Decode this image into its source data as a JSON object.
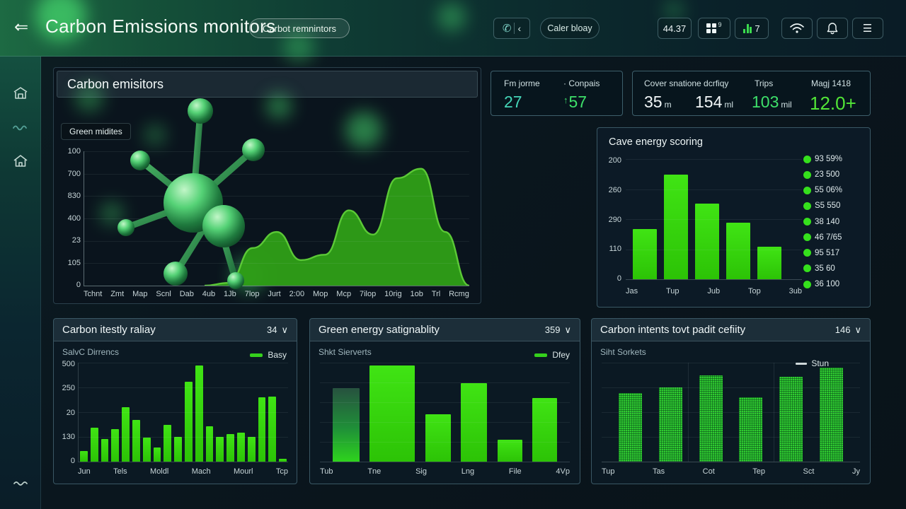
{
  "header": {
    "title": "Carbon Emissions monitors",
    "badge": "Carbot remnintors",
    "caller_button": "Caler bloay",
    "clock": "44.37",
    "apps_count": "9",
    "chart_count": "7"
  },
  "ui": {
    "back_arrow": "⇐",
    "chevron_left": "‹",
    "menu_glyph": "☰",
    "caret": "∨"
  },
  "stats": {
    "card1": {
      "col1_label": "Fm jorme",
      "col1_value": "27",
      "col2_label": "· Conpais",
      "col2_prefix": "↑",
      "col2_value": "57"
    },
    "card2": {
      "col1_label": "Cover snatione dcrfiqy",
      "col1_value_a": "35",
      "col1_suffix_a": "m",
      "col1_value_b": "154",
      "col1_suffix_b": "ml",
      "col2_label": "Trips",
      "col2_value": "103",
      "col2_suffix": "mil",
      "col3_label": "Magj 1418",
      "col3_value": "12.0+"
    }
  },
  "colors": {
    "accent_green": "#35d40c",
    "teal": "#45d6b8",
    "bright_green": "#52e637",
    "background": "#0a151d"
  },
  "chart_data": [
    {
      "id": "carbon-emissions-area",
      "type": "area",
      "title": "Carbon emisitors",
      "annotation": "Green midites",
      "x": [
        "Tchnt",
        "Zmt",
        "Map",
        "Scnl",
        "Dab",
        "4ub",
        "1Jb",
        "7lop",
        "Jurt",
        "2:00",
        "Mop",
        "Mcp",
        "7ilop",
        "10rig",
        "1ob",
        "Trl",
        "Rcmg"
      ],
      "y_ticks": [
        "100",
        "700",
        "830",
        "400",
        "23",
        "105",
        "0"
      ],
      "values": [
        0,
        0,
        0,
        0,
        0,
        0,
        2,
        28,
        40,
        19,
        23,
        56,
        38,
        80,
        87,
        40,
        0
      ],
      "ylim": [
        0,
        100
      ],
      "grid": true,
      "legend_position": "none"
    },
    {
      "id": "cave-energy-scoring",
      "type": "bar",
      "title": "Cave energy scoring",
      "categories": [
        "Jas",
        "Tup",
        "Jub",
        "Top",
        "3ub"
      ],
      "values": [
        80,
        166,
        119,
        89,
        51
      ],
      "y_ticks": [
        "200",
        "260",
        "290",
        "110",
        "0"
      ],
      "ylim": [
        0,
        190
      ],
      "grid": true,
      "legend": [
        "93 59%",
        "23 500",
        "55 06%",
        "S5 550",
        "38 140",
        "46 7/65",
        "95 517",
        "35 60",
        "36 100"
      ],
      "legend_position": "right"
    },
    {
      "id": "carbon-intensity-relay",
      "type": "bar",
      "title": "Carbon itestly raliay",
      "dropdown": "34",
      "subtitle": "SalvC Dirrencs",
      "legend": [
        "Basy"
      ],
      "legend_position": "top-right",
      "categories": [
        "Jun",
        "Tels",
        "Moldl",
        "Mach",
        "Mourl",
        "Tcp"
      ],
      "values": [
        14,
        43,
        29,
        41,
        69,
        53,
        30,
        18,
        46,
        31,
        101,
        121,
        45,
        31,
        35,
        36,
        31,
        81,
        83,
        4
      ],
      "y_ticks": [
        "500",
        "250",
        "20",
        "130",
        "0"
      ],
      "ylim": [
        0,
        125
      ],
      "grid": true
    },
    {
      "id": "green-energy-sustainability",
      "type": "bar",
      "title": "Green energy satignablity",
      "dropdown": "359",
      "subtitle": "Shkt Sierverts",
      "legend": [
        "Dfey"
      ],
      "legend_position": "top-right",
      "categories": [
        "Tub",
        "Tne",
        "Sig",
        "Lng",
        "File",
        "4Vp"
      ],
      "values": [
        108,
        140,
        70,
        114,
        32,
        93
      ],
      "ylim": [
        0,
        145
      ],
      "grid": true
    },
    {
      "id": "carbon-intents-capacity",
      "type": "bar",
      "title": "Carbon intents tovt padit cefiity",
      "dropdown": "146",
      "subtitle": "Siht Sorkets",
      "legend": [
        "Stun"
      ],
      "legend_position": "top-right",
      "categories": [
        "Tup",
        "Tas",
        "Cot",
        "Tep",
        "Sct",
        "Jy"
      ],
      "values": [
        103,
        113,
        131,
        97,
        129,
        142
      ],
      "ylim": [
        0,
        150
      ],
      "grid": true
    }
  ]
}
